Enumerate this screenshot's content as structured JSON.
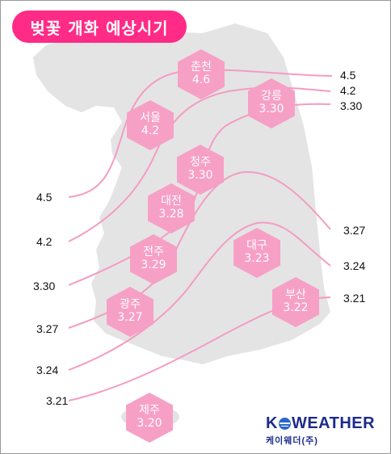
{
  "title": "벚꽃 개화 예상시기",
  "cities": [
    {
      "id": "chuncheon",
      "name": "춘천",
      "date": "4.6"
    },
    {
      "id": "gangneung",
      "name": "강릉",
      "date": "3.30"
    },
    {
      "id": "seoul",
      "name": "서울",
      "date": "4.2"
    },
    {
      "id": "cheongju",
      "name": "청주",
      "date": "3.30"
    },
    {
      "id": "daejeon",
      "name": "대전",
      "date": "3.28"
    },
    {
      "id": "jeonju",
      "name": "전주",
      "date": "3.29"
    },
    {
      "id": "daegu",
      "name": "대구",
      "date": "3.23"
    },
    {
      "id": "gwangju",
      "name": "광주",
      "date": "3.27"
    },
    {
      "id": "busan",
      "name": "부산",
      "date": "3.22"
    },
    {
      "id": "jeju",
      "name": "제주",
      "date": "3.20"
    }
  ],
  "contours": [
    {
      "label": "4.5",
      "left_label": "4.5",
      "right_label": "4.5"
    },
    {
      "label": "4.2",
      "left_label": "4.2",
      "right_label": "4.2"
    },
    {
      "label": "3.30",
      "left_label": "3.30",
      "right_label": "3.30"
    },
    {
      "label": "3.27",
      "left_label": "3.27",
      "right_label": "3.27"
    },
    {
      "label": "3.24",
      "left_label": "3.24",
      "right_label": "3.24"
    },
    {
      "label": "3.21",
      "left_label": "3.21",
      "right_label": "3.21"
    }
  ],
  "logo": {
    "main_left": "K",
    "main_right": "WEATHER",
    "sub": "케이웨더(주)"
  },
  "colors": {
    "title_bg": "#ff2b86",
    "hex_fill": "#f7a0c6",
    "contour_line": "#f49cc3",
    "land": "#e4e4e4",
    "logo": "#1d2b8c",
    "logo_globe": "#2a66c9"
  }
}
